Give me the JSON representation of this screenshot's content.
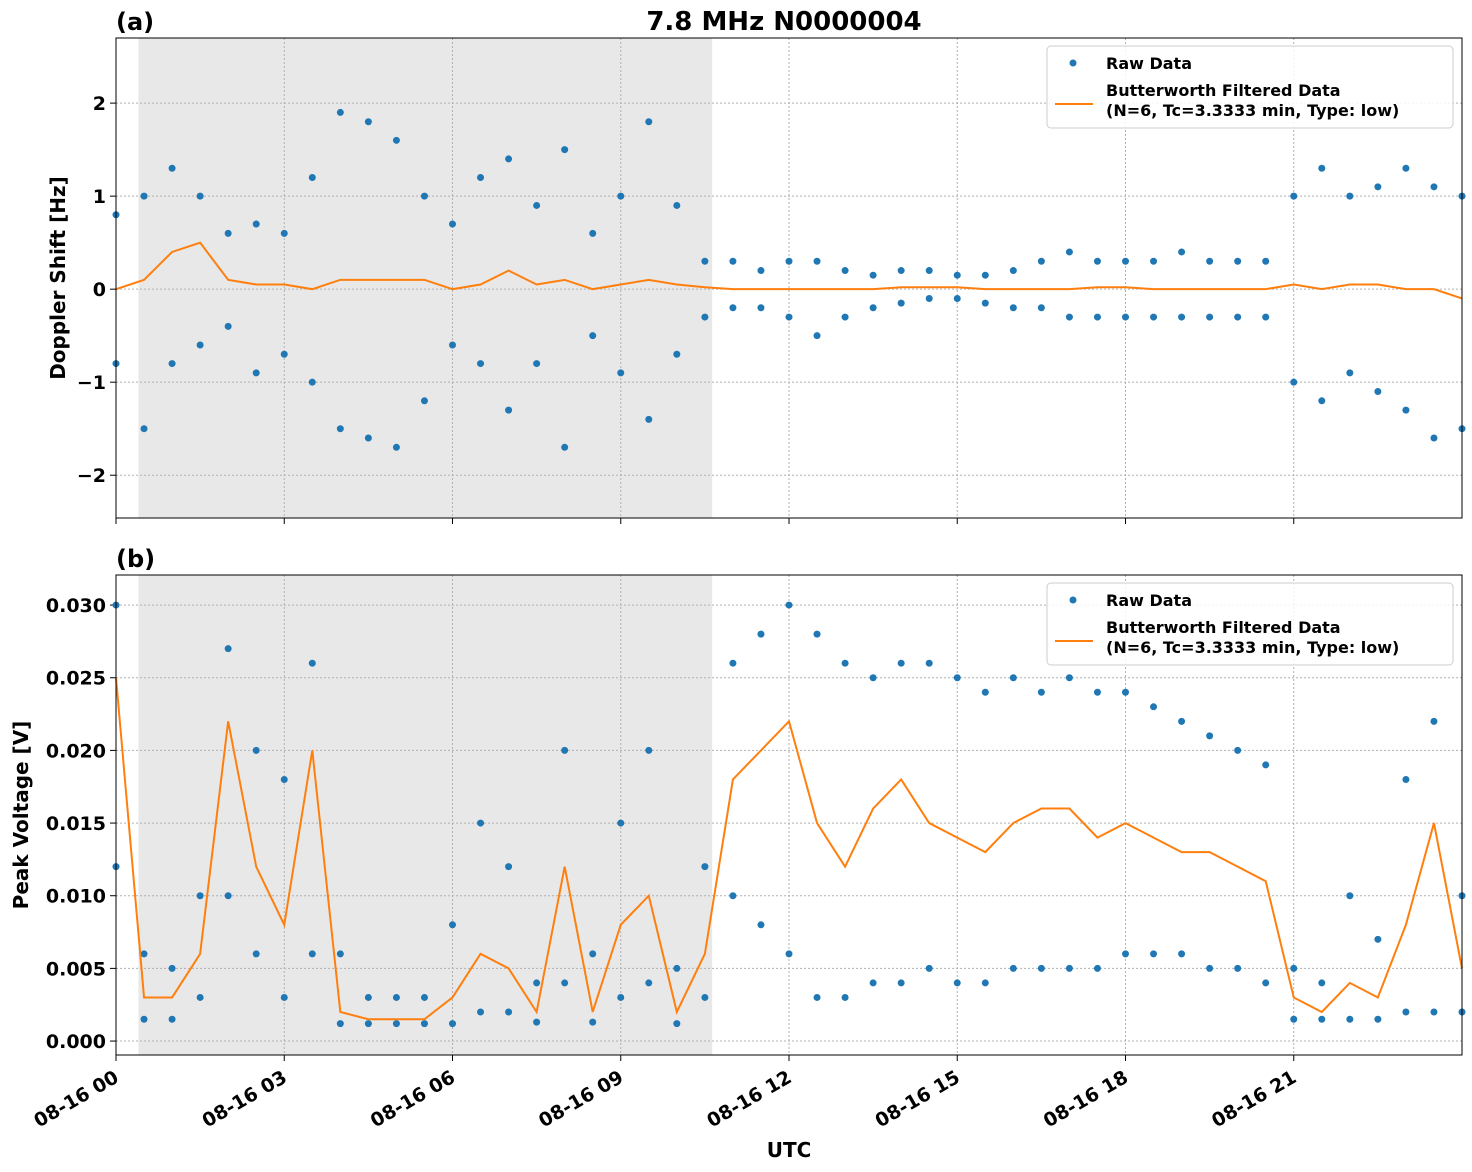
{
  "title": "7.8 MHz N0000004",
  "chart_data": [
    {
      "type": "scatter-line",
      "panel_label": "(a)",
      "ylabel": "Doppler Shift [Hz]",
      "xlim": [
        0,
        24
      ],
      "ylim": [
        -2.46,
        2.7
      ],
      "grid": true,
      "legend": "upper right",
      "shaded_span": [
        0.4,
        10.63
      ],
      "shade_color": "#e8e8e8",
      "xticks": [
        0,
        3,
        6,
        9,
        12,
        15,
        18,
        21
      ],
      "show_xtick_labels": false,
      "yticks": [
        {
          "value": -2,
          "label": "−2"
        },
        {
          "value": -1,
          "label": "−1"
        },
        0,
        1,
        2
      ],
      "series": [
        {
          "name": "Raw Data",
          "kind": "scatter",
          "color": "#1f77b4",
          "x": [
            0,
            0,
            0.5,
            0.5,
            1,
            1,
            1.5,
            1.5,
            2,
            2,
            2.5,
            2.5,
            3,
            3,
            3.5,
            3.5,
            4,
            4,
            4.5,
            4.5,
            5,
            5,
            5.5,
            5.5,
            6,
            6,
            6.5,
            6.5,
            7,
            7,
            7.5,
            7.5,
            8,
            8,
            8.5,
            8.5,
            9,
            9,
            9.5,
            9.5,
            10,
            10,
            10.5,
            10.5,
            11,
            11,
            11.5,
            11.5,
            12,
            12,
            12.5,
            12.5,
            13,
            13,
            13.5,
            13.5,
            14,
            14,
            14.5,
            14.5,
            15,
            15,
            15.5,
            15.5,
            16,
            16,
            16.5,
            16.5,
            17,
            17,
            17.5,
            17.5,
            18,
            18,
            18.5,
            18.5,
            19,
            19,
            19.5,
            19.5,
            20,
            20,
            20.5,
            20.5,
            21,
            21,
            21.5,
            21.5,
            22,
            22,
            22.5,
            22.5,
            23,
            23,
            23.5,
            23.5,
            24,
            24
          ],
          "values": [
            0.8,
            -0.8,
            1.0,
            -1.5,
            1.3,
            -0.8,
            1.0,
            -0.6,
            0.6,
            -0.4,
            0.7,
            -0.9,
            0.6,
            -0.7,
            1.2,
            -1.0,
            1.9,
            -1.5,
            1.8,
            -1.6,
            1.6,
            -1.7,
            1.0,
            -1.2,
            0.7,
            -0.6,
            1.2,
            -0.8,
            1.4,
            -1.3,
            0.9,
            -0.8,
            1.5,
            -1.7,
            0.6,
            -0.5,
            1.0,
            -0.9,
            1.8,
            -1.4,
            0.9,
            -0.7,
            0.3,
            -0.3,
            0.3,
            -0.2,
            0.2,
            -0.2,
            0.3,
            -0.3,
            0.3,
            -0.5,
            0.2,
            -0.3,
            0.15,
            -0.2,
            0.2,
            -0.15,
            0.2,
            -0.1,
            0.15,
            -0.1,
            0.15,
            -0.15,
            0.2,
            -0.2,
            0.3,
            -0.2,
            0.4,
            -0.3,
            0.3,
            -0.3,
            0.3,
            -0.3,
            0.3,
            -0.3,
            0.4,
            -0.3,
            0.3,
            -0.3,
            0.3,
            -0.3,
            0.3,
            -0.3,
            1.0,
            -1.0,
            1.3,
            -1.2,
            1.0,
            -0.9,
            1.1,
            -1.1,
            1.3,
            -1.3,
            1.1,
            -1.6,
            1.0,
            -1.5
          ]
        },
        {
          "name": "Butterworth Filtered Data\n(N=6, Tc=3.3333 min, Type: low)",
          "kind": "line",
          "color": "#ff7f0e",
          "x": [
            0,
            0.5,
            1,
            1.5,
            2,
            2.5,
            3,
            3.5,
            4,
            4.5,
            5,
            5.5,
            6,
            6.5,
            7,
            7.5,
            8,
            8.5,
            9,
            9.5,
            10,
            10.5,
            11,
            11.5,
            12,
            12.5,
            13,
            13.5,
            14,
            14.5,
            15,
            15.5,
            16,
            16.5,
            17,
            17.5,
            18,
            18.5,
            19,
            19.5,
            20,
            20.5,
            21,
            21.5,
            22,
            22.5,
            23,
            23.5,
            24
          ],
          "values": [
            0,
            0.1,
            0.4,
            0.5,
            0.1,
            0.05,
            0.05,
            0,
            0.1,
            0.1,
            0.1,
            0.1,
            0,
            0.05,
            0.2,
            0.05,
            0.1,
            0,
            0.05,
            0.1,
            0.05,
            0.02,
            0,
            0,
            0,
            0,
            0,
            0,
            0.02,
            0.02,
            0.02,
            0,
            0,
            0,
            0,
            0.02,
            0.02,
            0,
            0,
            0,
            0,
            0,
            0.05,
            0,
            0.05,
            0.05,
            0,
            0,
            -0.1
          ]
        }
      ]
    },
    {
      "type": "scatter-line",
      "panel_label": "(b)",
      "ylabel": "Peak Voltage [V]",
      "xlabel": "UTC",
      "xlim": [
        0,
        24
      ],
      "ylim": [
        -0.00096,
        0.03207
      ],
      "grid": true,
      "legend": "upper right",
      "shaded_span": [
        0.4,
        10.63
      ],
      "shade_color": "#e8e8e8",
      "xticks": [
        {
          "value": 0,
          "label": "08-16 00"
        },
        {
          "value": 3,
          "label": "08-16 03"
        },
        {
          "value": 6,
          "label": "08-16 06"
        },
        {
          "value": 9,
          "label": "08-16 09"
        },
        {
          "value": 12,
          "label": "08-16 12"
        },
        {
          "value": 15,
          "label": "08-16 15"
        },
        {
          "value": 18,
          "label": "08-16 18"
        },
        {
          "value": 21,
          "label": "08-16 21"
        }
      ],
      "show_xtick_labels": true,
      "yticks": [
        {
          "value": 0,
          "label": "0.000"
        },
        {
          "value": 0.005,
          "label": "0.005"
        },
        {
          "value": 0.01,
          "label": "0.010"
        },
        {
          "value": 0.015,
          "label": "0.015"
        },
        {
          "value": 0.02,
          "label": "0.020"
        },
        {
          "value": 0.025,
          "label": "0.025"
        },
        {
          "value": 0.03,
          "label": "0.030"
        }
      ],
      "series": [
        {
          "name": "Raw Data",
          "kind": "scatter",
          "color": "#1f77b4",
          "x": [
            0,
            0,
            0.5,
            0.5,
            1,
            1,
            1.5,
            1.5,
            2,
            2,
            2.5,
            2.5,
            3,
            3,
            3.5,
            3.5,
            4,
            4,
            4.5,
            4.5,
            5,
            5,
            5.5,
            5.5,
            6,
            6,
            6.5,
            6.5,
            7,
            7,
            7.5,
            7.5,
            8,
            8,
            8.5,
            8.5,
            9,
            9,
            9.5,
            9.5,
            10,
            10,
            10.5,
            10.5,
            11,
            11,
            11.5,
            11.5,
            12,
            12,
            12.5,
            12.5,
            13,
            13,
            13.5,
            13.5,
            14,
            14,
            14.5,
            14.5,
            15,
            15,
            15.5,
            15.5,
            16,
            16,
            16.5,
            16.5,
            17,
            17,
            17.5,
            17.5,
            18,
            18,
            18.5,
            18.5,
            19,
            19,
            19.5,
            19.5,
            20,
            20,
            20.5,
            20.5,
            21,
            21,
            21.5,
            21.5,
            22,
            22,
            22.5,
            22.5,
            23,
            23,
            23.5,
            23.5,
            24,
            24
          ],
          "values": [
            0.03,
            0.012,
            0.006,
            0.0015,
            0.005,
            0.0015,
            0.01,
            0.003,
            0.027,
            0.01,
            0.02,
            0.006,
            0.018,
            0.003,
            0.026,
            0.006,
            0.006,
            0.0012,
            0.003,
            0.0012,
            0.003,
            0.0012,
            0.003,
            0.0012,
            0.008,
            0.0012,
            0.015,
            0.002,
            0.012,
            0.002,
            0.004,
            0.0013,
            0.02,
            0.004,
            0.006,
            0.0013,
            0.015,
            0.003,
            0.02,
            0.004,
            0.005,
            0.0012,
            0.012,
            0.003,
            0.026,
            0.01,
            0.028,
            0.008,
            0.03,
            0.006,
            0.028,
            0.003,
            0.026,
            0.003,
            0.025,
            0.004,
            0.026,
            0.004,
            0.026,
            0.005,
            0.025,
            0.004,
            0.024,
            0.004,
            0.025,
            0.005,
            0.024,
            0.005,
            0.025,
            0.005,
            0.024,
            0.005,
            0.024,
            0.006,
            0.023,
            0.006,
            0.022,
            0.006,
            0.021,
            0.005,
            0.02,
            0.005,
            0.019,
            0.004,
            0.005,
            0.0015,
            0.004,
            0.0015,
            0.01,
            0.0015,
            0.007,
            0.0015,
            0.018,
            0.002,
            0.022,
            0.002,
            0.01,
            0.002
          ]
        },
        {
          "name": "Butterworth Filtered Data\n(N=6, Tc=3.3333 min, Type: low)",
          "kind": "line",
          "color": "#ff7f0e",
          "x": [
            0,
            0.5,
            1,
            1.5,
            2,
            2.5,
            3,
            3.5,
            4,
            4.5,
            5,
            5.5,
            6,
            6.5,
            7,
            7.5,
            8,
            8.5,
            9,
            9.5,
            10,
            10.5,
            11,
            11.5,
            12,
            12.5,
            13,
            13.5,
            14,
            14.5,
            15,
            15.5,
            16,
            16.5,
            17,
            17.5,
            18,
            18.5,
            19,
            19.5,
            20,
            20.5,
            21,
            21.5,
            22,
            22.5,
            23,
            23.5,
            24
          ],
          "values": [
            0.025,
            0.003,
            0.003,
            0.006,
            0.022,
            0.012,
            0.008,
            0.02,
            0.002,
            0.0015,
            0.0015,
            0.0015,
            0.003,
            0.006,
            0.005,
            0.002,
            0.012,
            0.002,
            0.008,
            0.01,
            0.002,
            0.006,
            0.018,
            0.02,
            0.022,
            0.015,
            0.012,
            0.016,
            0.018,
            0.015,
            0.014,
            0.013,
            0.015,
            0.016,
            0.016,
            0.014,
            0.015,
            0.014,
            0.013,
            0.013,
            0.012,
            0.011,
            0.003,
            0.002,
            0.004,
            0.003,
            0.008,
            0.015,
            0.005
          ]
        }
      ]
    }
  ]
}
